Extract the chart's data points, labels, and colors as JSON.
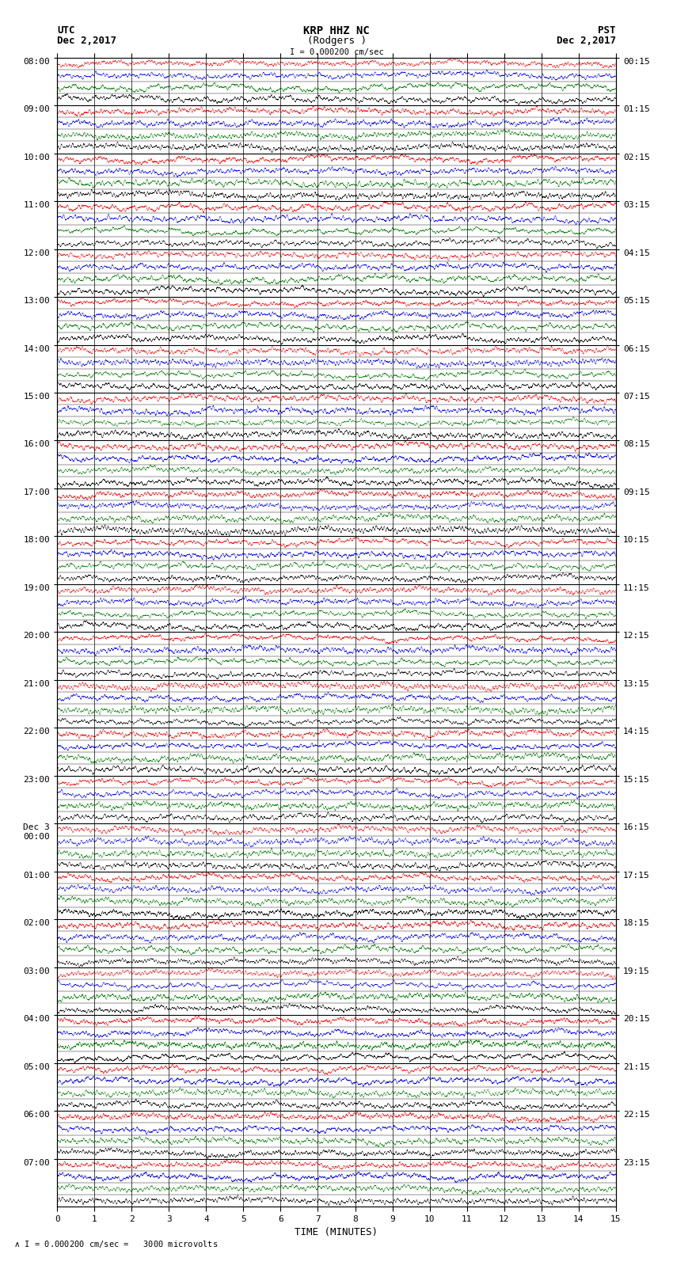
{
  "title_line1": "KRP HHZ NC",
  "title_line2": "(Rodgers )",
  "scale_label": "I = 0.000200 cm/sec",
  "footer_label": "\\A I = 0.000200 cm/sec =   3000 microvolts",
  "left_label_top": "UTC",
  "left_label_date": "Dec 2,2017",
  "right_label_top": "PST",
  "right_label_date": "Dec 2,2017",
  "xlabel": "TIME (MINUTES)",
  "left_times": [
    "08:00",
    "09:00",
    "10:00",
    "11:00",
    "12:00",
    "13:00",
    "14:00",
    "15:00",
    "16:00",
    "17:00",
    "18:00",
    "19:00",
    "20:00",
    "21:00",
    "22:00",
    "23:00",
    "Dec 3\n00:00",
    "01:00",
    "02:00",
    "03:00",
    "04:00",
    "05:00",
    "06:00",
    "07:00"
  ],
  "right_times": [
    "00:15",
    "01:15",
    "02:15",
    "03:15",
    "04:15",
    "05:15",
    "06:15",
    "07:15",
    "08:15",
    "09:15",
    "10:15",
    "11:15",
    "12:15",
    "13:15",
    "14:15",
    "15:15",
    "16:15",
    "17:15",
    "18:15",
    "19:15",
    "20:15",
    "21:15",
    "22:15",
    "23:15"
  ],
  "n_rows": 24,
  "n_subrows": 4,
  "x_min": 0,
  "x_max": 15,
  "colors": [
    "#FF0000",
    "#0000FF",
    "#008000",
    "#000000"
  ],
  "bg_color": "#FFFFFF",
  "fig_width": 8.5,
  "fig_height": 16.13,
  "dpi": 100,
  "title_fontsize": 10,
  "label_fontsize": 9,
  "tick_fontsize": 8,
  "axis_tick_fontsize": 8
}
